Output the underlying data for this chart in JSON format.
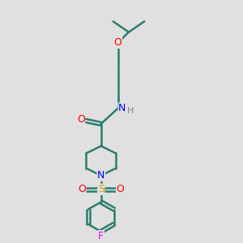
{
  "bg_color": "#e0e0e0",
  "bond_color": "#2d7d6e",
  "line_width": 1.8,
  "atom_colors": {
    "N": "#0000ff",
    "O": "#ff0000",
    "S": "#ccaa00",
    "F": "#ff00ff",
    "H": "#888888",
    "C": "#2d7d6e"
  },
  "font_size": 9
}
